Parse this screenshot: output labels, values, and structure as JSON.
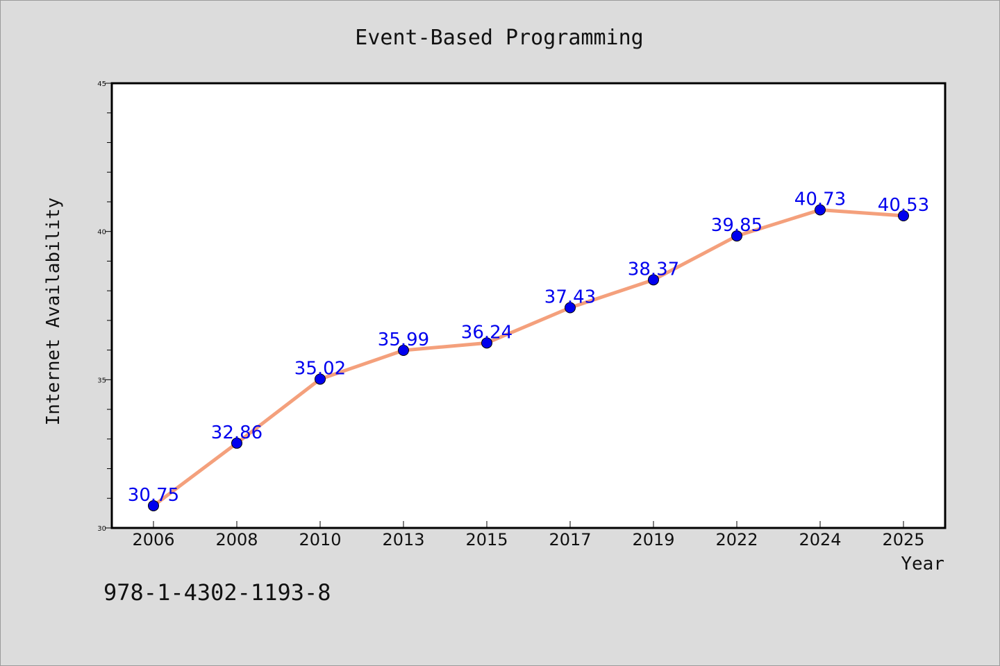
{
  "chart_data": {
    "type": "line",
    "title": "Event-Based Programming",
    "xlabel": "Year",
    "ylabel": "Internet Availability",
    "categories": [
      "2006",
      "2008",
      "2010",
      "2013",
      "2015",
      "2017",
      "2019",
      "2022",
      "2024",
      "2025"
    ],
    "series": [
      {
        "values": [
          30.75,
          32.86,
          35.02,
          35.99,
          36.24,
          37.43,
          38.37,
          39.85,
          40.73,
          40.53
        ]
      }
    ],
    "data_labels": [
      "30.75",
      "32.86",
      "35.02",
      "35.99",
      "36.24",
      "37.43",
      "38.37",
      "39.85",
      "40.73",
      "40.53"
    ],
    "ylim": [
      30,
      45
    ],
    "y_ticks": [
      "30",
      "35",
      "40",
      "45"
    ],
    "grid": false,
    "line_color": "#f4a07c",
    "marker_color": "#0000ee",
    "label_color": "#0000ee"
  },
  "footer": {
    "isbn": "978-1-4302-1193-8"
  }
}
